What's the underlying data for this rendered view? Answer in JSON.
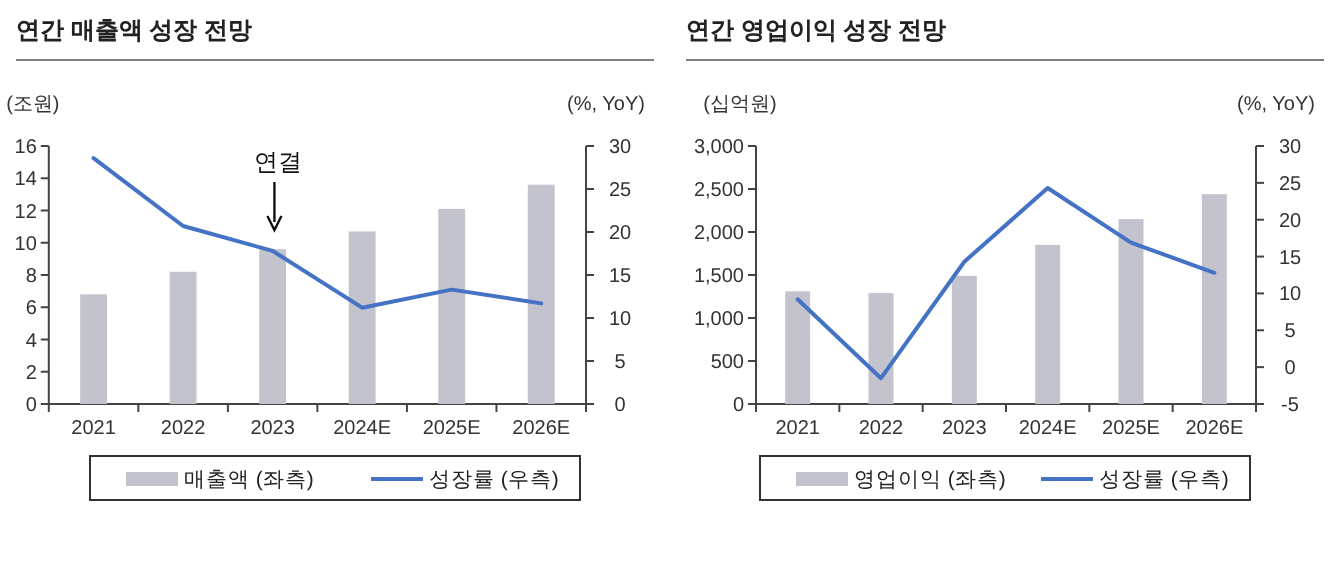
{
  "chart_data": [
    {
      "type": "bar",
      "title": "연간 매출액 성장 전망",
      "ylabel": "(조원)",
      "y2label": "(%, YoY)",
      "categories": [
        "2021",
        "2022",
        "2023",
        "2024E",
        "2025E",
        "2026E"
      ],
      "series": [
        {
          "name": "매출액 (좌측)",
          "color": "#c3c3cd",
          "values": [
            6.8,
            8.2,
            9.6,
            10.7,
            12.1,
            13.6
          ]
        },
        {
          "name": "성장률 (우측)",
          "type": "line",
          "axis": "y2",
          "color": "#4472c4",
          "values": [
            28.6,
            20.7,
            17.8,
            11.2,
            13.3,
            11.7
          ]
        }
      ],
      "ylim": [
        0,
        16
      ],
      "yticks": [
        0,
        2,
        4,
        6,
        8,
        10,
        12,
        14,
        16
      ],
      "y2lim": [
        0,
        30
      ],
      "y2ticks": [
        0,
        5,
        10,
        15,
        20,
        25,
        30
      ],
      "annotations": [
        "연결"
      ],
      "legend": "bottom"
    },
    {
      "type": "bar",
      "title": "연간 영업이익 성장 전망",
      "ylabel": "(십억원)",
      "y2label": "(%, YoY)",
      "categories": [
        "2021",
        "2022",
        "2023",
        "2024E",
        "2025E",
        "2026E"
      ],
      "series": [
        {
          "name": "영업이익 (좌측)",
          "color": "#c3c3cd",
          "values": [
            1310,
            1290,
            1490,
            1850,
            2150,
            2440
          ]
        },
        {
          "name": "성장률 (우측)",
          "type": "line",
          "axis": "y2",
          "color": "#4472c4",
          "values": [
            9.2,
            -1.5,
            14.3,
            24.3,
            16.9,
            12.8
          ]
        }
      ],
      "ylim": [
        0,
        3000
      ],
      "yticks": [
        0,
        {
          "value": 500,
          "label": "500"
        },
        {
          "value": 1000,
          "label": "1,000"
        },
        {
          "value": 1500,
          "label": "1,500"
        },
        {
          "value": 2000,
          "label": "2,000"
        },
        {
          "value": 2500,
          "label": "2,500"
        },
        {
          "value": 3000,
          "label": "3,000"
        }
      ],
      "y2lim": [
        -5,
        30
      ],
      "y2ticks": [
        -5,
        0,
        5,
        10,
        15,
        20,
        25,
        30
      ],
      "legend": "bottom"
    }
  ]
}
